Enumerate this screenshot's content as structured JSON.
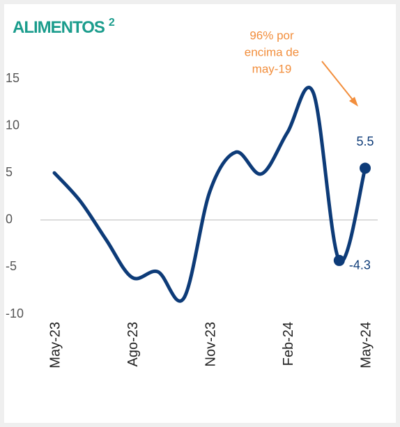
{
  "chart_data": {
    "type": "line",
    "title": "ALIMENTOS",
    "title_superscript": "2",
    "annotation": [
      "96% por",
      "encima de",
      "may-19"
    ],
    "annotation_color": "#f28e3c",
    "categories": [
      "May-23",
      null,
      null,
      "Ago-23",
      null,
      null,
      "Nov-23",
      null,
      null,
      "Feb-24",
      null,
      null,
      "May-24"
    ],
    "series": [
      {
        "name": "Alimentos",
        "color": "#0d3b78",
        "values": [
          5,
          2,
          -2.1,
          -6.1,
          -5.5,
          -8.3,
          3,
          7.2,
          4.9,
          9.3,
          13.5,
          -4.3,
          5.5
        ]
      }
    ],
    "labeled_points": [
      11,
      12
    ],
    "ylim": [
      -10,
      15
    ],
    "yticks": [
      -10,
      -5,
      0,
      5,
      10,
      15
    ],
    "zero_line": true
  }
}
